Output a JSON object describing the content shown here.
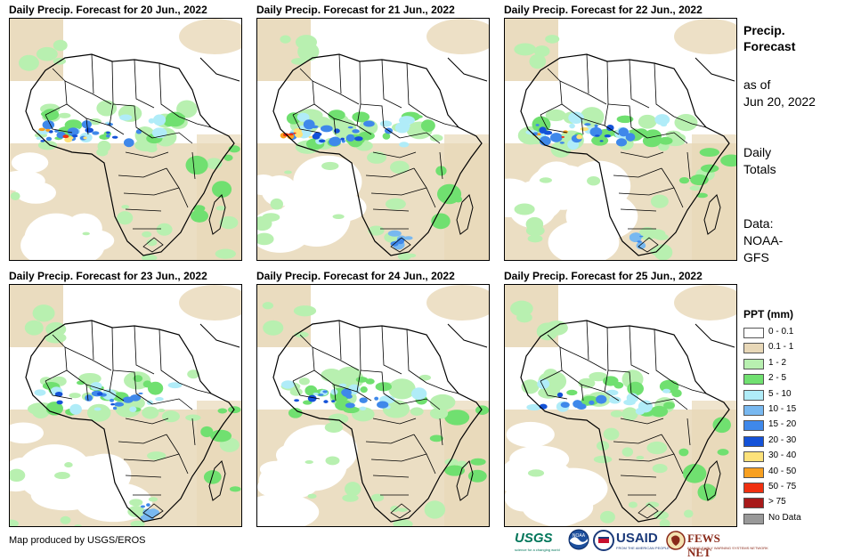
{
  "panels": [
    {
      "title": "Daily Precip. Forecast for 20 Jun., 2022",
      "west_africa_band": "heavy-red",
      "southern_africa": "light"
    },
    {
      "title": "Daily Precip. Forecast for 21 Jun., 2022",
      "west_africa_band": "very-heavy",
      "southern_africa": "moderate"
    },
    {
      "title": "Daily Precip. Forecast for 22 Jun., 2022",
      "west_africa_band": "heavy",
      "southern_africa": "moderate"
    },
    {
      "title": "Daily Precip. Forecast for 23 Jun., 2022",
      "west_africa_band": "moderate",
      "southern_africa": "moderate"
    },
    {
      "title": "Daily Precip. Forecast for 24 Jun., 2022",
      "west_africa_band": "moderate",
      "southern_africa": "light"
    },
    {
      "title": "Daily Precip. Forecast for 25 Jun., 2022",
      "west_africa_band": "light",
      "southern_africa": "light"
    }
  ],
  "side": {
    "title_line1": "Precip.",
    "title_line2": "Forecast",
    "asof_line1": "as of",
    "asof_line2": "Jun 20, 2022",
    "totals_line1": "Daily",
    "totals_line2": "Totals",
    "data_line1": "Data:",
    "data_line2": "NOAA-",
    "data_line3": "GFS"
  },
  "legend": {
    "title": "PPT (mm)",
    "items": [
      {
        "label": "0 - 0.1",
        "color": "#ffffff"
      },
      {
        "label": "0.1 - 1",
        "color": "#e8d8b8"
      },
      {
        "label": "1 - 2",
        "color": "#b8f0b0"
      },
      {
        "label": "2 - 5",
        "color": "#70e070"
      },
      {
        "label": "5 - 10",
        "color": "#b0ecf8"
      },
      {
        "label": "10 - 15",
        "color": "#78b8f0"
      },
      {
        "label": "15 - 20",
        "color": "#3f88ea"
      },
      {
        "label": "20 - 30",
        "color": "#1452d8"
      },
      {
        "label": "30 - 40",
        "color": "#fde27a"
      },
      {
        "label": "40 - 50",
        "color": "#f8a020"
      },
      {
        "label": "50 - 75",
        "color": "#f03010"
      },
      {
        "label": "> 75",
        "color": "#a81a1a"
      },
      {
        "label": "No Data",
        "color": "#999999"
      }
    ]
  },
  "credit": "Map produced by USGS/EROS",
  "logos": {
    "usgs": "USGS",
    "usgs_tagline": "science for a changing world",
    "noaa": "NOAA",
    "usaid": "USAID",
    "usaid_tagline": "FROM THE AMERICAN PEOPLE",
    "fews": "FEWS NET",
    "fews_tagline": "FAMINE EARLY WARNING SYSTEMS NETWORK"
  }
}
